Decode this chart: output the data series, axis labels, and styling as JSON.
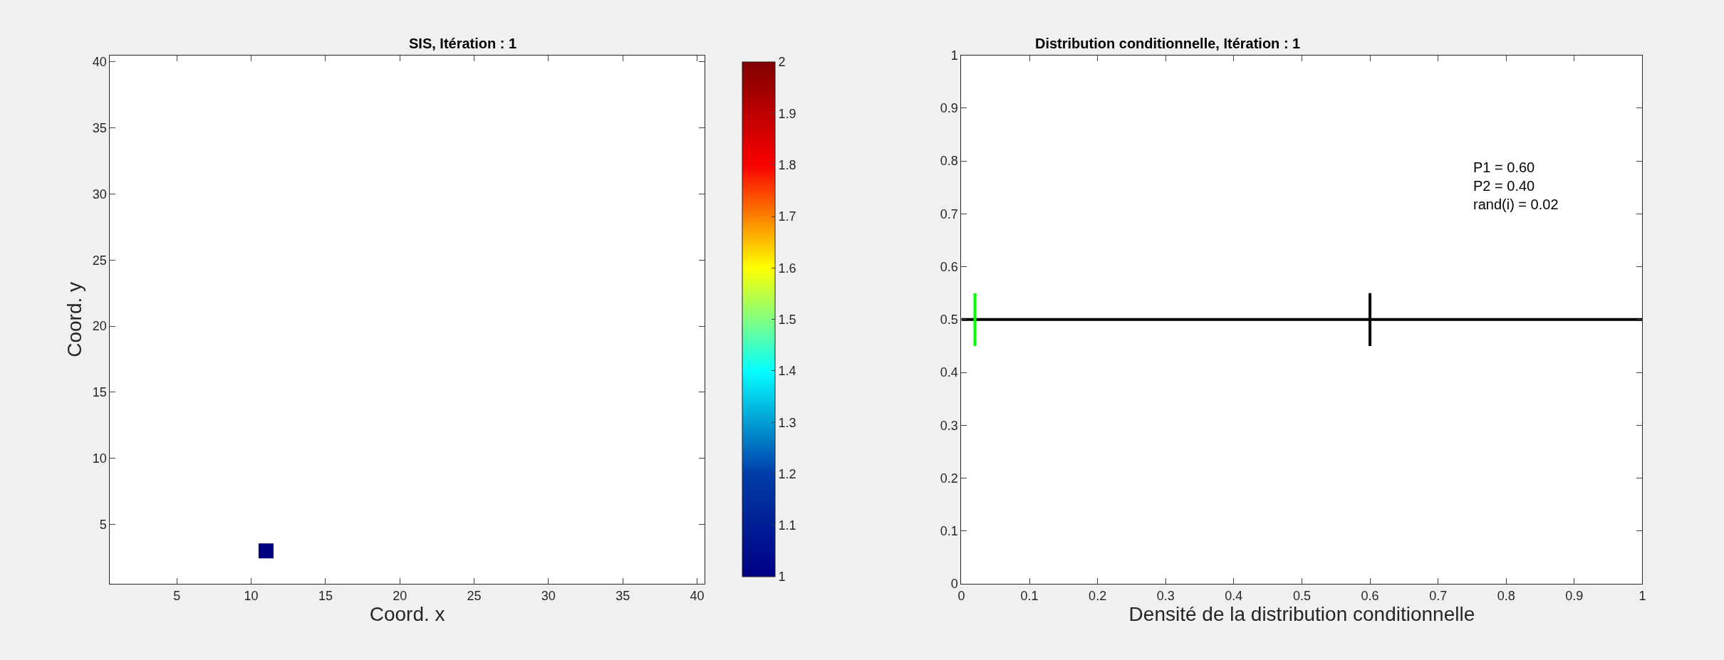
{
  "chart_data": [
    {
      "type": "scatter",
      "title": "SIS, Itération : 1",
      "xlabel": "Coord. x",
      "ylabel": "Coord. y",
      "x": [
        11
      ],
      "values": [
        3
      ],
      "cvalues": [
        1
      ],
      "marker": "square",
      "xlim": [
        0.5,
        40.5
      ],
      "ylim": [
        0.5,
        40.5
      ],
      "xticks": [
        5,
        10,
        15,
        20,
        25,
        30,
        35,
        40
      ],
      "yticks": [
        5,
        10,
        15,
        20,
        25,
        30,
        35,
        40
      ],
      "clim": [
        1,
        2
      ],
      "cticks": [
        1,
        1.1,
        1.2,
        1.3,
        1.4,
        1.5,
        1.6,
        1.7,
        1.8,
        1.9,
        2
      ]
    },
    {
      "type": "line",
      "title": "Distribution conditionnelle, Itération : 1",
      "xlabel": "Densité de la distribution conditionnelle",
      "series": [
        {
          "color": "#000000",
          "x": [
            0,
            1
          ],
          "values": [
            0.5,
            0.5
          ]
        },
        {
          "color": "#00ff00",
          "x": [
            0.02,
            0.02
          ],
          "values": [
            0.45,
            0.55
          ]
        },
        {
          "color": "#000000",
          "x": [
            0.6,
            0.6
          ],
          "values": [
            0.45,
            0.55
          ]
        }
      ],
      "xlim": [
        0,
        1
      ],
      "ylim": [
        0,
        1
      ],
      "xticks": [
        0,
        0.1,
        0.2,
        0.3,
        0.4,
        0.5,
        0.6,
        0.7,
        0.8,
        0.9,
        1
      ],
      "yticks": [
        0,
        0.1,
        0.2,
        0.3,
        0.4,
        0.5,
        0.6,
        0.7,
        0.8,
        0.9,
        1
      ],
      "annotations": [
        "P1 = 0.60",
        "P2 = 0.40",
        "rand(i) = 0.02"
      ]
    }
  ]
}
